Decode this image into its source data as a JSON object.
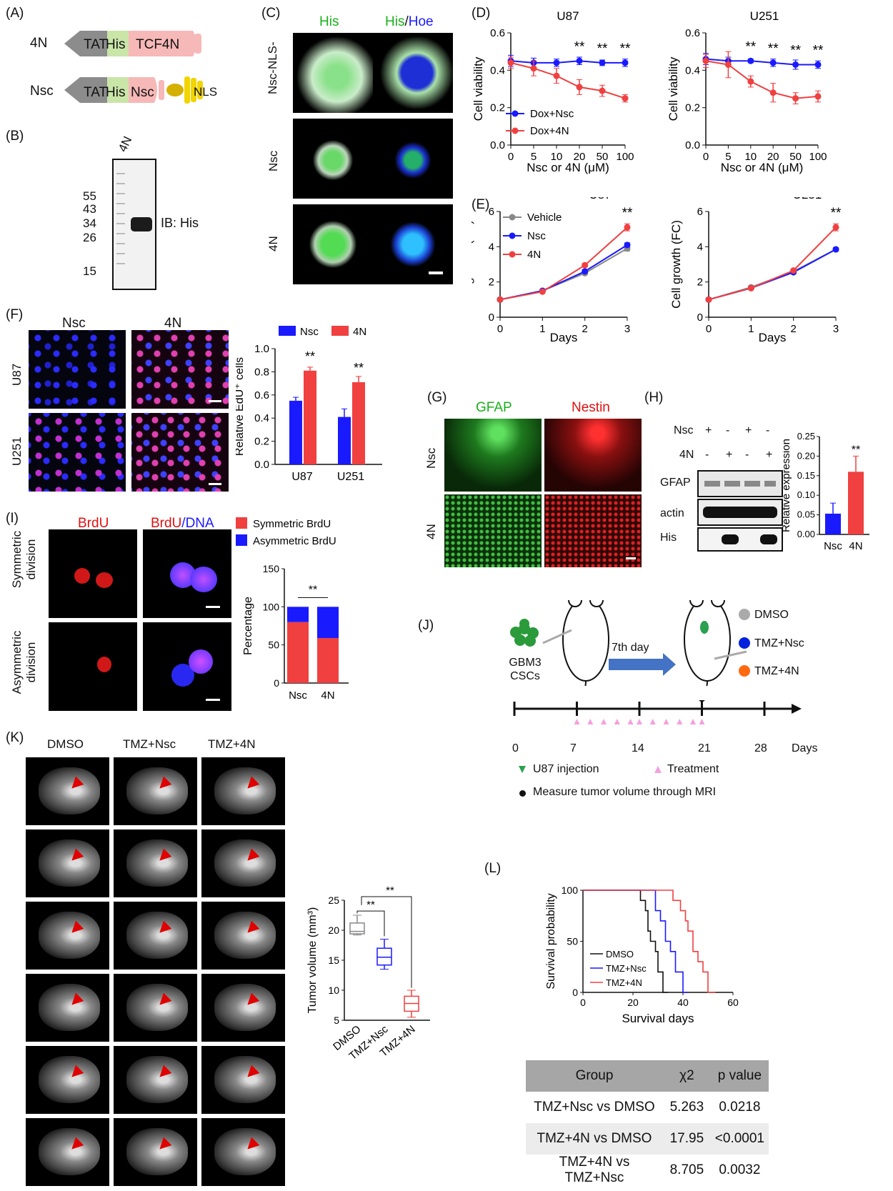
{
  "panels": {
    "A": "(A)",
    "B": "(B)",
    "C": "(C)",
    "D": "(D)",
    "E": "(E)",
    "F": "(F)",
    "G": "(G)",
    "H": "(H)",
    "I": "(I)",
    "J": "(J)",
    "K": "(K)",
    "L": "(L)"
  },
  "A": {
    "row1_label": "4N",
    "row1_parts": [
      "TAT",
      "His",
      "TCF4N"
    ],
    "row2_label": "Nsc",
    "row2_parts": [
      "TAT",
      "His",
      "Nsc",
      "NLS"
    ]
  },
  "B": {
    "lane": "4N",
    "markers": [
      "55",
      "43",
      "34",
      "26",
      "15"
    ],
    "ib": "IB: His"
  },
  "C": {
    "col1": "His",
    "col2a": "His",
    "col2b": "/",
    "col2c": "Hoe",
    "rows": [
      "Nsc-NLS-",
      "Nsc",
      "4N"
    ]
  },
  "D": {
    "titles": [
      "U87",
      "U251"
    ],
    "ylabel": "Cell viability",
    "xlabel": "Nsc or 4N (μM)",
    "legend": [
      "Dox+Nsc",
      "Dox+4N"
    ],
    "sig": "**"
  },
  "E": {
    "titles": [
      "U87",
      "U251"
    ],
    "ylabel": "Cell growth (FC)",
    "xlabel": "Days",
    "legend": [
      "Vehicle",
      "Nsc",
      "4N"
    ],
    "sig": "**"
  },
  "F": {
    "cols": [
      "Nsc",
      "4N"
    ],
    "rows": [
      "U87",
      "U251"
    ],
    "ylabel": "Relative EdU⁺ cells",
    "legend": [
      "Nsc",
      "4N"
    ],
    "sig": "**"
  },
  "G": {
    "cols": [
      "GFAP",
      "Nestin"
    ],
    "rows": [
      "Nsc",
      "4N"
    ]
  },
  "H": {
    "row_labels": [
      "Nsc",
      "4N"
    ],
    "nsc_signs": [
      "+",
      "-",
      "+",
      "-"
    ],
    "fourN_signs": [
      "-",
      "+",
      "-",
      "+"
    ],
    "blots": [
      "GFAP",
      "actin",
      "His"
    ],
    "ylabel": "Relative expression",
    "sig": "**"
  },
  "I": {
    "col1": "BrdU",
    "col2a": "BrdU",
    "col2b": "/DNA",
    "rows": [
      "Symmetric division",
      "Asymmetric division"
    ],
    "legend": [
      "Symmetric BrdU",
      "Asymmetric BrdU"
    ],
    "ylabel": "Percentage",
    "sig": "**"
  },
  "J": {
    "cells": "GBM3 CSCs",
    "arrow": "7th day",
    "legend": [
      "DMSO",
      "TMZ+Nsc",
      "TMZ+4N"
    ],
    "ticks": [
      "0",
      "7",
      "14",
      "21",
      "28"
    ],
    "axis": "Days",
    "key1": "U87 injection",
    "key2": "Treatment",
    "key3": "Measure tumor volume through MRI"
  },
  "K": {
    "cols": [
      "DMSO",
      "TMZ+Nsc",
      "TMZ+4N"
    ],
    "ylabel": "Tumor volume (mm³)",
    "sig": "**"
  },
  "L": {
    "ylabel": "Survival probability",
    "xlabel": "Survival days",
    "legend": [
      "DMSO",
      "TMZ+Nsc",
      "TMZ+4N"
    ],
    "table": {
      "headers": [
        "Group",
        "χ2",
        "p value"
      ],
      "rows": [
        [
          "TMZ+Nsc vs DMSO",
          "5.263",
          "0.0218"
        ],
        [
          "TMZ+4N vs DMSO",
          "17.95",
          "<0.0001"
        ],
        [
          "TMZ+4N vs TMZ+Nsc",
          "8.705",
          "0.0032"
        ]
      ]
    }
  },
  "colors": {
    "nsc": "#1a1aff",
    "fourN": "#f04040",
    "vehicle": "#888888"
  },
  "chart_data": [
    {
      "id": "D-U87",
      "type": "line",
      "title": "U87",
      "x": [
        "0",
        "5",
        "10",
        "20",
        "50",
        "100"
      ],
      "xlabel": "Nsc or 4N (μM)",
      "ylabel": "Cell viability",
      "ylim": [
        0,
        0.6
      ],
      "series": [
        {
          "name": "Dox+Nsc",
          "values": [
            0.45,
            0.44,
            0.44,
            0.45,
            0.44,
            0.44
          ]
        },
        {
          "name": "Dox+4N",
          "values": [
            0.44,
            0.41,
            0.37,
            0.31,
            0.29,
            0.25
          ]
        }
      ]
    },
    {
      "id": "D-U251",
      "type": "line",
      "title": "U251",
      "x": [
        "0",
        "5",
        "10",
        "20",
        "50",
        "100"
      ],
      "xlabel": "Nsc or 4N (μM)",
      "ylabel": "Cell viability",
      "ylim": [
        0,
        0.6
      ],
      "series": [
        {
          "name": "Dox+Nsc",
          "values": [
            0.46,
            0.45,
            0.45,
            0.44,
            0.43,
            0.43
          ]
        },
        {
          "name": "Dox+4N",
          "values": [
            0.45,
            0.43,
            0.34,
            0.28,
            0.25,
            0.26
          ]
        }
      ]
    },
    {
      "id": "E-U87",
      "type": "line",
      "title": "U87",
      "x": [
        0,
        1,
        2,
        3
      ],
      "xlabel": "Days",
      "ylabel": "Cell growth (FC)",
      "ylim": [
        0,
        6
      ],
      "series": [
        {
          "name": "Vehicle",
          "values": [
            1,
            1.5,
            2.5,
            3.9
          ]
        },
        {
          "name": "Nsc",
          "values": [
            1,
            1.5,
            2.6,
            4.1
          ]
        },
        {
          "name": "4N",
          "values": [
            1,
            1.45,
            2.95,
            5.1
          ]
        }
      ]
    },
    {
      "id": "E-U251",
      "type": "line",
      "title": "U251",
      "x": [
        0,
        1,
        2,
        3
      ],
      "xlabel": "Days",
      "ylabel": "Cell growth (FC)",
      "ylim": [
        0,
        6
      ],
      "series": [
        {
          "name": "Vehicle",
          "values": [
            1,
            1.7,
            2.6,
            3.85
          ]
        },
        {
          "name": "Nsc",
          "values": [
            1,
            1.65,
            2.55,
            3.85
          ]
        },
        {
          "name": "4N",
          "values": [
            1,
            1.65,
            2.65,
            5.1
          ]
        }
      ]
    },
    {
      "id": "F-bar",
      "type": "bar",
      "categories": [
        "U87",
        "U251"
      ],
      "ylabel": "Relative EdU⁺ cells",
      "ylim": [
        0,
        1.0
      ],
      "series": [
        {
          "name": "Nsc",
          "values": [
            0.55,
            0.41
          ]
        },
        {
          "name": "4N",
          "values": [
            0.81,
            0.71
          ]
        }
      ]
    },
    {
      "id": "H-bar",
      "type": "bar",
      "categories": [
        "Nsc",
        "4N"
      ],
      "ylabel": "Relative expression",
      "ylim": [
        0,
        0.25
      ],
      "values": [
        0.053,
        0.16
      ]
    },
    {
      "id": "I-bar",
      "type": "bar",
      "categories": [
        "Nsc",
        "4N"
      ],
      "ylabel": "Percentage",
      "ylim": [
        0,
        150
      ],
      "series": [
        {
          "name": "Symmetric BrdU",
          "values": [
            80,
            59
          ]
        },
        {
          "name": "Asymmetric BrdU",
          "values": [
            20,
            41
          ]
        }
      ]
    },
    {
      "id": "K-box",
      "type": "box",
      "categories": [
        "DMSO",
        "TMZ+Nsc",
        "TMZ+4N"
      ],
      "ylabel": "Tumor volume (mm³)",
      "ylim": [
        5,
        25
      ],
      "values": [
        {
          "min": 19.2,
          "q1": 19.4,
          "median": 19.8,
          "q3": 21.2,
          "max": 22.5
        },
        {
          "min": 13.5,
          "q1": 14.2,
          "median": 15.5,
          "q3": 17,
          "max": 18.5
        },
        {
          "min": 5.5,
          "q1": 6.5,
          "median": 7.8,
          "q3": 9,
          "max": 10
        }
      ]
    },
    {
      "id": "L-km",
      "type": "line",
      "xlabel": "Survival days",
      "ylabel": "Survival probability",
      "xlim": [
        0,
        60
      ],
      "ylim": [
        0,
        100
      ],
      "series": [
        {
          "name": "DMSO",
          "x": [
            0,
            23,
            23,
            25,
            25,
            26,
            26,
            27,
            27,
            29,
            29,
            30,
            30,
            32,
            32,
            34
          ],
          "values": [
            100,
            100,
            90,
            90,
            80,
            80,
            60,
            60,
            50,
            50,
            40,
            40,
            20,
            20,
            0,
            0
          ]
        },
        {
          "name": "TMZ+Nsc",
          "x": [
            0,
            29,
            29,
            31,
            31,
            33,
            33,
            35,
            35,
            37,
            37,
            40,
            40,
            42
          ],
          "values": [
            100,
            100,
            80,
            80,
            70,
            70,
            50,
            50,
            40,
            40,
            20,
            20,
            0,
            0
          ]
        },
        {
          "name": "TMZ+4N",
          "x": [
            0,
            36,
            36,
            39,
            39,
            41,
            41,
            42,
            42,
            44,
            44,
            46,
            46,
            48,
            48,
            50,
            50,
            53
          ],
          "values": [
            100,
            100,
            90,
            90,
            80,
            80,
            70,
            70,
            60,
            60,
            40,
            40,
            30,
            30,
            20,
            20,
            0,
            0
          ]
        }
      ]
    }
  ]
}
